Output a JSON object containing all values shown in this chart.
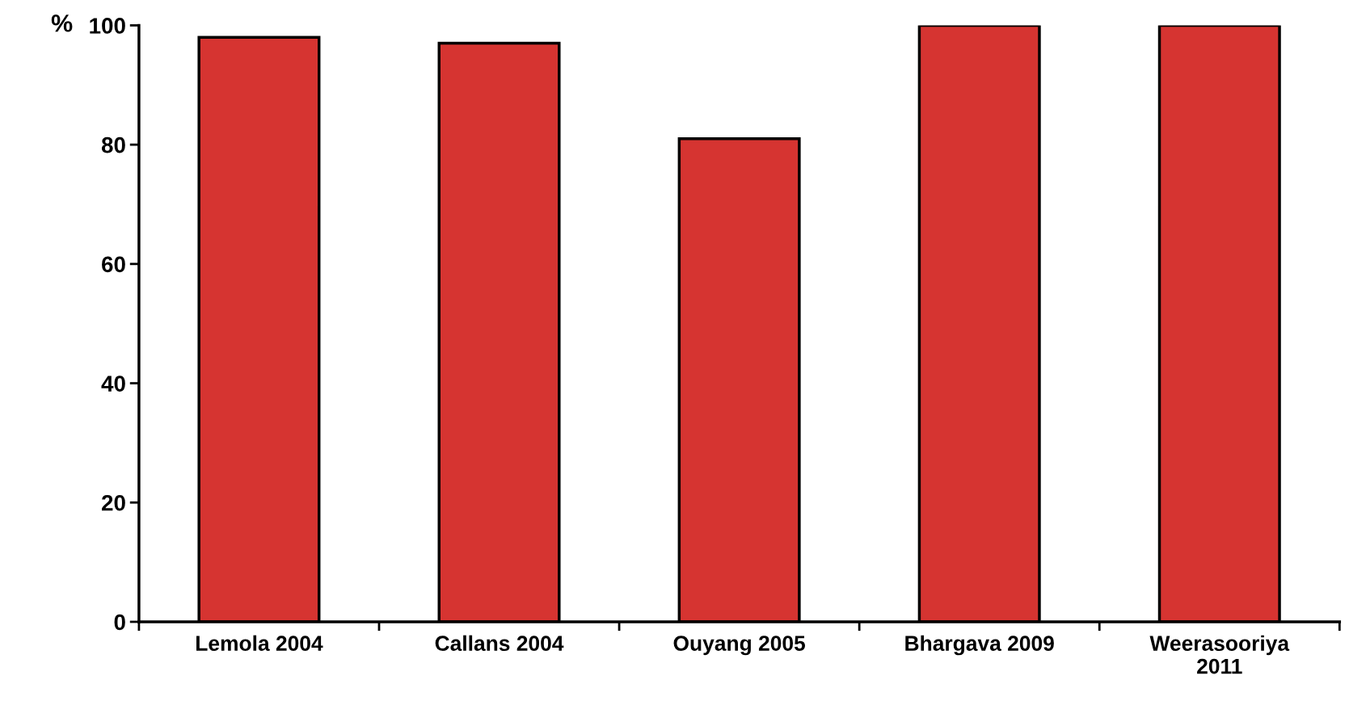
{
  "chart_data": {
    "type": "bar",
    "ylabel": "%",
    "categories": [
      "Lemola 2004",
      "Callans 2004",
      "Ouyang 2005",
      "Bhargava 2009",
      "Weerasooriya 2011"
    ],
    "values": [
      98,
      97,
      81,
      100,
      100
    ],
    "color": "#d63431",
    "ylim": [
      0,
      100
    ],
    "yticks": [
      0,
      20,
      40,
      60,
      80,
      100
    ],
    "grid": false,
    "legend": false
  }
}
